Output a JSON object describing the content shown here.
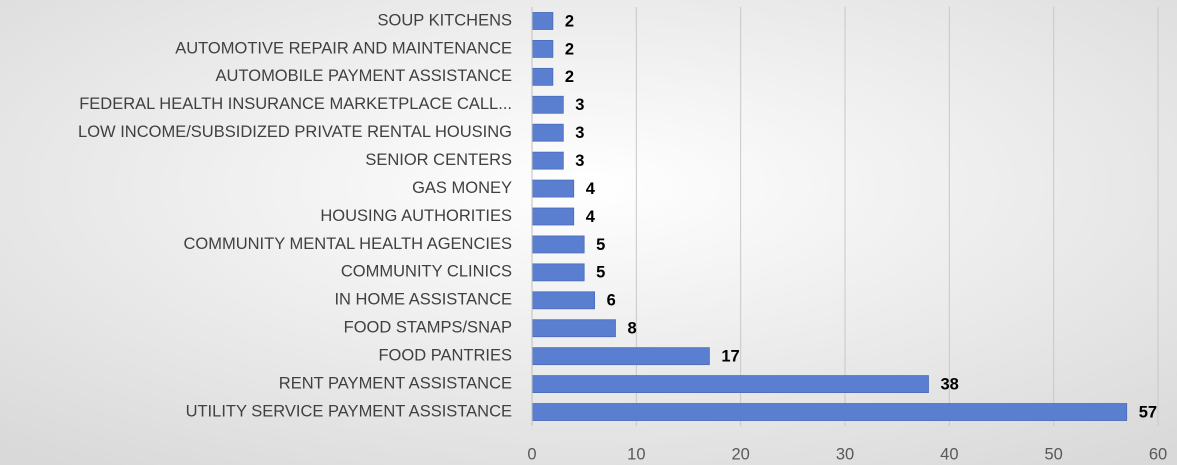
{
  "chart_data": {
    "type": "barh",
    "categories": [
      "SOUP KITCHENS",
      "AUTOMOTIVE REPAIR AND MAINTENANCE",
      "AUTOMOBILE PAYMENT ASSISTANCE",
      "FEDERAL HEALTH INSURANCE MARKETPLACE CALL...",
      "LOW INCOME/SUBSIDIZED PRIVATE RENTAL HOUSING",
      "SENIOR CENTERS",
      "GAS MONEY",
      "HOUSING AUTHORITIES",
      "COMMUNITY MENTAL HEALTH AGENCIES",
      "COMMUNITY CLINICS",
      "IN HOME ASSISTANCE",
      "FOOD STAMPS/SNAP",
      "FOOD PANTRIES",
      "RENT PAYMENT ASSISTANCE",
      "UTILITY SERVICE PAYMENT ASSISTANCE"
    ],
    "values": [
      2,
      2,
      2,
      3,
      3,
      3,
      4,
      4,
      5,
      5,
      6,
      8,
      17,
      38,
      57
    ],
    "color": "#5b7fd0",
    "xlim": [
      0,
      60
    ],
    "xticks": [
      0,
      10,
      20,
      30,
      40,
      50,
      60
    ],
    "grid": true
  }
}
